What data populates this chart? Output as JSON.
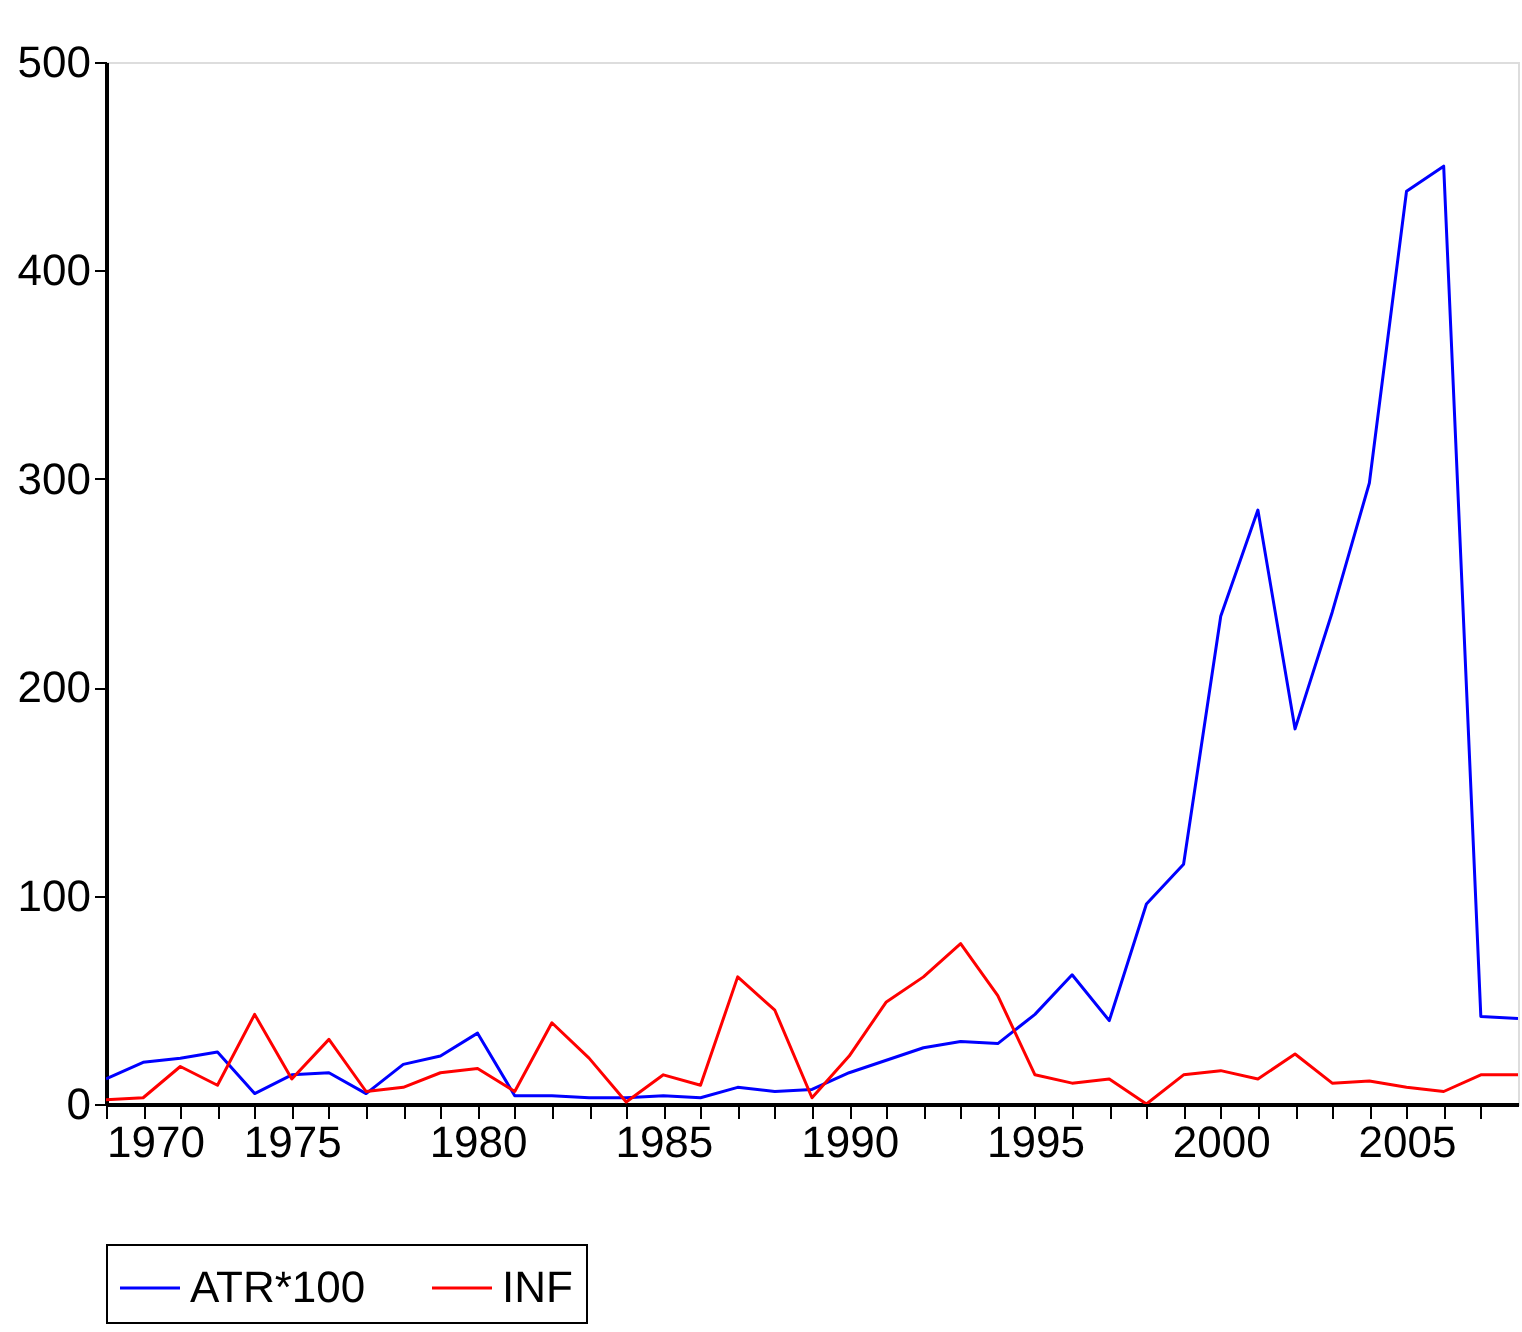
{
  "chart_data": {
    "type": "line",
    "x": [
      1970,
      1971,
      1972,
      1973,
      1974,
      1975,
      1976,
      1977,
      1978,
      1979,
      1980,
      1981,
      1982,
      1983,
      1984,
      1985,
      1986,
      1987,
      1988,
      1989,
      1990,
      1991,
      1992,
      1993,
      1994,
      1995,
      1996,
      1997,
      1998,
      1999,
      2000,
      2001,
      2002,
      2003,
      2004,
      2005,
      2006,
      2007,
      2008
    ],
    "series": [
      {
        "name": "ATR*100",
        "color": "#0000ff",
        "values": [
          12,
          20,
          22,
          25,
          5,
          14,
          15,
          5,
          19,
          23,
          34,
          4,
          4,
          3,
          3,
          4,
          3,
          8,
          6,
          7,
          15,
          21,
          27,
          30,
          29,
          43,
          62,
          40,
          96,
          115,
          234,
          285,
          180,
          236,
          298,
          438,
          450,
          42,
          41
        ]
      },
      {
        "name": "INF",
        "color": "#ff0000",
        "values": [
          2,
          3,
          18,
          9,
          43,
          12,
          31,
          6,
          8,
          15,
          17,
          6,
          39,
          22,
          1,
          14,
          9,
          61,
          45,
          3,
          23,
          49,
          61,
          77,
          52,
          14,
          10,
          12,
          0,
          14,
          16,
          12,
          24,
          10,
          11,
          8,
          6,
          14,
          14
        ]
      }
    ],
    "xlim": [
      1970,
      2008
    ],
    "xticks": [
      1970,
      {
        "value": 1971,
        "label": null
      },
      {
        "value": 1972,
        "label": null
      },
      {
        "value": 1973,
        "label": null
      },
      {
        "value": 1974,
        "label": null
      },
      1975,
      {
        "value": 1976,
        "label": null
      },
      {
        "value": 1977,
        "label": null
      },
      {
        "value": 1978,
        "label": null
      },
      {
        "value": 1979,
        "label": null
      },
      1980,
      {
        "value": 1981,
        "label": null
      },
      {
        "value": 1982,
        "label": null
      },
      {
        "value": 1983,
        "label": null
      },
      {
        "value": 1984,
        "label": null
      },
      1985,
      {
        "value": 1986,
        "label": null
      },
      {
        "value": 1987,
        "label": null
      },
      {
        "value": 1988,
        "label": null
      },
      {
        "value": 1989,
        "label": null
      },
      1990,
      {
        "value": 1991,
        "label": null
      },
      {
        "value": 1992,
        "label": null
      },
      {
        "value": 1993,
        "label": null
      },
      {
        "value": 1994,
        "label": null
      },
      1995,
      {
        "value": 1996,
        "label": null
      },
      {
        "value": 1997,
        "label": null
      },
      {
        "value": 1998,
        "label": null
      },
      {
        "value": 1999,
        "label": null
      },
      2000,
      {
        "value": 2001,
        "label": null
      },
      {
        "value": 2002,
        "label": null
      },
      {
        "value": 2003,
        "label": null
      },
      {
        "value": 2004,
        "label": null
      },
      2005,
      {
        "value": 2006,
        "label": null
      },
      {
        "value": 2007,
        "label": null
      }
    ],
    "ylim": [
      0,
      500
    ],
    "yticks": [
      0,
      100,
      200,
      300,
      400,
      500
    ],
    "grid": false,
    "legend": "bottom",
    "marker": "none",
    "line_style": "solid"
  }
}
